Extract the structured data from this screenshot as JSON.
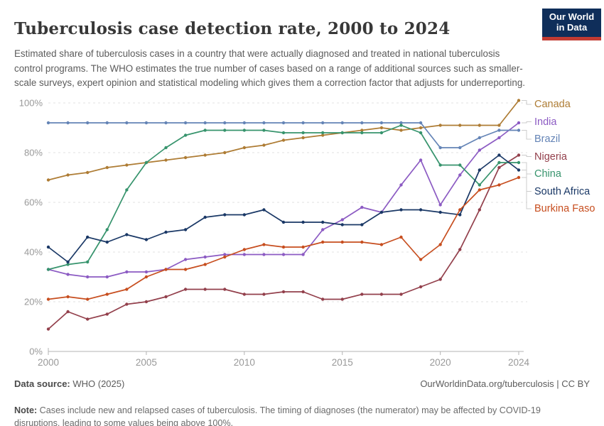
{
  "header": {
    "title": "Tuberculosis case detection rate, 2000 to 2024",
    "subtitle": "Estimated share of tuberculosis cases in a country that were actually diagnosed and treated in national tuberculosis control programs. The WHO estimates the true number of cases based on a range of additional sources such as smaller-scale surveys, expert opinion and statistical modeling which gives them a correction factor that adjusts for underreporting.",
    "logo": {
      "line1": "Our World",
      "line2": "in Data",
      "bg_color": "#0F2E5A",
      "bar_color": "#C23B33"
    }
  },
  "chart_data": {
    "type": "line",
    "title": "Tuberculosis case detection rate, 2000 to 2024",
    "x": [
      2000,
      2001,
      2002,
      2003,
      2004,
      2005,
      2006,
      2007,
      2008,
      2009,
      2010,
      2011,
      2012,
      2013,
      2014,
      2015,
      2016,
      2017,
      2018,
      2019,
      2020,
      2021,
      2022,
      2023,
      2024
    ],
    "xticks": [
      2000,
      2005,
      2010,
      2015,
      2020,
      2024
    ],
    "yticks": [
      0,
      20,
      40,
      60,
      80,
      100
    ],
    "ylim": [
      0,
      100
    ],
    "y_unit": "%",
    "grid": true,
    "legend_position": "right",
    "series": [
      {
        "name": "Canada",
        "color": "#AE7C34",
        "values": [
          69,
          71,
          72,
          74,
          75,
          76,
          77,
          78,
          79,
          80,
          82,
          83,
          85,
          86,
          87,
          88,
          89,
          90,
          89,
          90,
          91,
          91,
          91,
          91,
          101
        ]
      },
      {
        "name": "India",
        "color": "#8C5BC3",
        "values": [
          33,
          31,
          30,
          30,
          32,
          32,
          33,
          37,
          38,
          39,
          39,
          39,
          39,
          39,
          49,
          53,
          58,
          56,
          67,
          77,
          59,
          71,
          81,
          86,
          92
        ]
      },
      {
        "name": "Brazil",
        "color": "#6484B6",
        "values": [
          92,
          92,
          92,
          92,
          92,
          92,
          92,
          92,
          92,
          92,
          92,
          92,
          92,
          92,
          92,
          92,
          92,
          92,
          92,
          92,
          82,
          82,
          86,
          89,
          89
        ]
      },
      {
        "name": "Nigeria",
        "color": "#93404C",
        "values": [
          9,
          16,
          13,
          15,
          19,
          20,
          22,
          25,
          25,
          25,
          23,
          23,
          24,
          24,
          21,
          21,
          23,
          23,
          23,
          26,
          29,
          41,
          57,
          74,
          79
        ]
      },
      {
        "name": "China",
        "color": "#37946D",
        "values": [
          33,
          35,
          36,
          49,
          65,
          76,
          82,
          87,
          89,
          89,
          89,
          89,
          88,
          88,
          88,
          88,
          88,
          88,
          91,
          88,
          75,
          75,
          67,
          76,
          76
        ]
      },
      {
        "name": "South Africa",
        "color": "#1A3866",
        "values": [
          42,
          36,
          46,
          44,
          47,
          45,
          48,
          49,
          54,
          55,
          55,
          57,
          52,
          52,
          52,
          51,
          51,
          56,
          57,
          57,
          56,
          55,
          73,
          79,
          73
        ]
      },
      {
        "name": "Burkina Faso",
        "color": "#C74E1F",
        "values": [
          21,
          22,
          21,
          23,
          25,
          30,
          33,
          33,
          35,
          38,
          41,
          43,
          42,
          42,
          44,
          44,
          44,
          43,
          46,
          37,
          43,
          57,
          65,
          67,
          70
        ]
      }
    ]
  },
  "footer": {
    "source_label": "Data source:",
    "source_value": " WHO (2025)",
    "link": "OurWorldinData.org/tuberculosis",
    "separator": " | ",
    "license": "CC BY",
    "note_label": "Note:",
    "note_value": " Cases include new and relapsed cases of tuberculosis. The timing of diagnoses (the numerator) may be affected by COVID-19 disruptions, leading to some values being above 100%."
  }
}
